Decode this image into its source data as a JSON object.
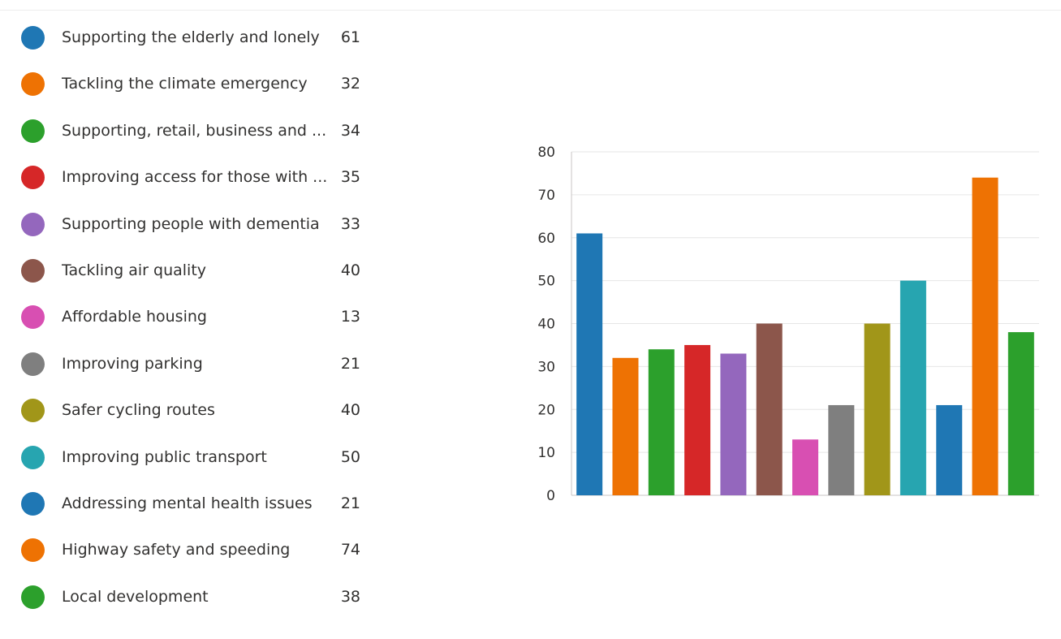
{
  "legend": {
    "items": [
      {
        "label": "Supporting the elderly and lonely",
        "count": "61",
        "color": "#1f77b4"
      },
      {
        "label": "Tackling the climate emergency",
        "count": "32",
        "color": "#ee7203"
      },
      {
        "label": "Supporting, retail, business and ...",
        "count": "34",
        "color": "#2ca02c"
      },
      {
        "label": "Improving access for those with ...",
        "count": "35",
        "color": "#d62728"
      },
      {
        "label": "Supporting people with dementia",
        "count": "33",
        "color": "#9467bd"
      },
      {
        "label": "Tackling air quality",
        "count": "40",
        "color": "#8c564b"
      },
      {
        "label": "Affordable housing",
        "count": "13",
        "color": "#d84fb2"
      },
      {
        "label": "Improving parking",
        "count": "21",
        "color": "#7f7f7f"
      },
      {
        "label": "Safer cycling routes",
        "count": "40",
        "color": "#a19619"
      },
      {
        "label": "Improving public transport",
        "count": "50",
        "color": "#27a5b0"
      },
      {
        "label": "Addressing mental health issues",
        "count": "21",
        "color": "#1f77b4"
      },
      {
        "label": "Highway safety and speeding",
        "count": "74",
        "color": "#ee7203"
      },
      {
        "label": "Local development",
        "count": "38",
        "color": "#2ca02c"
      }
    ]
  },
  "chart_data": {
    "type": "bar",
    "categories": [
      "Supporting the elderly and lonely",
      "Tackling the climate emergency",
      "Supporting, retail, business and ...",
      "Improving access for those with ...",
      "Supporting people with dementia",
      "Tackling air quality",
      "Affordable housing",
      "Improving parking",
      "Safer cycling routes",
      "Improving public transport",
      "Addressing mental health issues",
      "Highway safety and speeding",
      "Local development"
    ],
    "values": [
      61,
      32,
      34,
      35,
      33,
      40,
      13,
      21,
      40,
      50,
      21,
      74,
      38
    ],
    "colors": [
      "#1f77b4",
      "#ee7203",
      "#2ca02c",
      "#d62728",
      "#9467bd",
      "#8c564b",
      "#d84fb2",
      "#7f7f7f",
      "#a19619",
      "#27a5b0",
      "#1f77b4",
      "#ee7203",
      "#2ca02c"
    ],
    "ylim": [
      0,
      80
    ],
    "yticks": [
      "0",
      "10",
      "20",
      "30",
      "40",
      "50",
      "60",
      "70",
      "80"
    ],
    "grid": true,
    "legend_placement": "left"
  }
}
